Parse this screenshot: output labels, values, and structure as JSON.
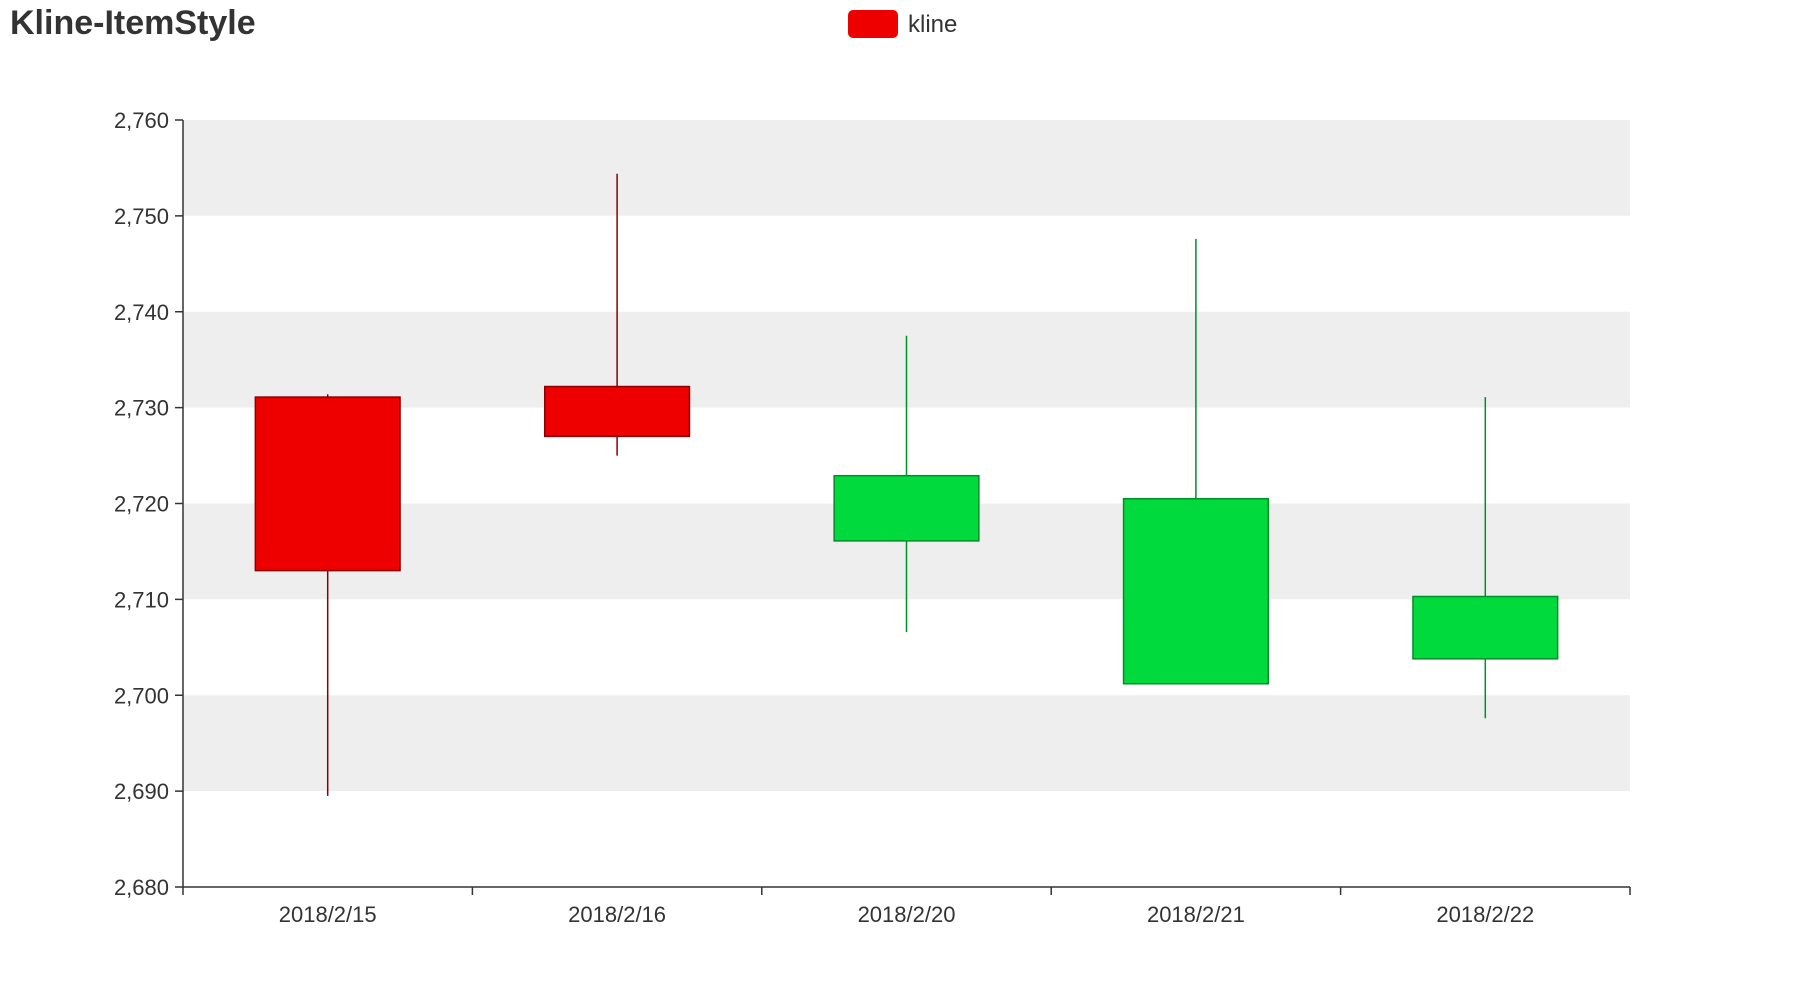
{
  "chart_data": {
    "type": "candlestick",
    "title": "Kline-ItemStyle",
    "legend": {
      "entries": [
        {
          "name": "kline",
          "color": "#ee0000"
        }
      ],
      "placement": "top-center"
    },
    "categories": [
      "2018/2/15",
      "2018/2/16",
      "2018/2/20",
      "2018/2/21",
      "2018/2/22"
    ],
    "series": [
      {
        "name": "kline",
        "data": [
          {
            "open": 2713.0,
            "close": 2731.1,
            "low": 2689.5,
            "high": 2731.4
          },
          {
            "open": 2727.0,
            "close": 2732.2,
            "low": 2725.0,
            "high": 2754.4
          },
          {
            "open": 2722.9,
            "close": 2716.1,
            "low": 2706.6,
            "high": 2737.5
          },
          {
            "open": 2720.5,
            "close": 2701.2,
            "low": 2701.2,
            "high": 2747.6
          },
          {
            "open": 2710.3,
            "close": 2703.8,
            "low": 2697.6,
            "high": 2731.1
          }
        ]
      }
    ],
    "ylim": [
      2680,
      2760
    ],
    "y_ticks": [
      2680,
      2690,
      2700,
      2710,
      2720,
      2730,
      2740,
      2750,
      2760
    ],
    "y_tick_labels": [
      "2,680",
      "2,690",
      "2,700",
      "2,710",
      "2,720",
      "2,730",
      "2,740",
      "2,750",
      "2,760"
    ],
    "split_area": true,
    "colors": {
      "up_fill": "#ee0000",
      "up_border": "#8a0000",
      "down_fill": "#00da3c",
      "down_border": "#008f28",
      "split_area": "#eeeeee",
      "axis": "#333333",
      "text": "#333333"
    }
  }
}
